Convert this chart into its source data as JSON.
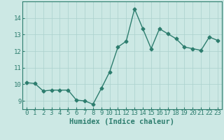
{
  "x": [
    0,
    1,
    2,
    3,
    4,
    5,
    6,
    7,
    8,
    9,
    10,
    11,
    12,
    13,
    14,
    15,
    16,
    17,
    18,
    19,
    20,
    21,
    22,
    23
  ],
  "y": [
    10.1,
    10.05,
    9.6,
    9.65,
    9.65,
    9.65,
    9.05,
    9.0,
    8.8,
    9.75,
    10.75,
    12.25,
    12.6,
    14.55,
    13.35,
    12.15,
    13.35,
    13.05,
    12.75,
    12.25,
    12.15,
    12.05,
    12.85,
    12.65
  ],
  "xlabel": "Humidex (Indice chaleur)",
  "ylim": [
    8.5,
    15.0
  ],
  "xlim": [
    -0.5,
    23.5
  ],
  "yticks": [
    9,
    10,
    11,
    12,
    13,
    14
  ],
  "xticks": [
    0,
    1,
    2,
    3,
    4,
    5,
    6,
    7,
    8,
    9,
    10,
    11,
    12,
    13,
    14,
    15,
    16,
    17,
    18,
    19,
    20,
    21,
    22,
    23
  ],
  "line_color": "#2d7d6e",
  "marker_color": "#2d7d6e",
  "bg_color": "#cce8e4",
  "grid_color": "#aad0cc",
  "axis_color": "#2d7d6e",
  "tick_label_color": "#2d7d6e",
  "xlabel_color": "#2d7d6e",
  "marker": "D",
  "marker_size": 2.5,
  "line_width": 1.0,
  "xlabel_fontsize": 7.5,
  "tick_fontsize": 6.5
}
